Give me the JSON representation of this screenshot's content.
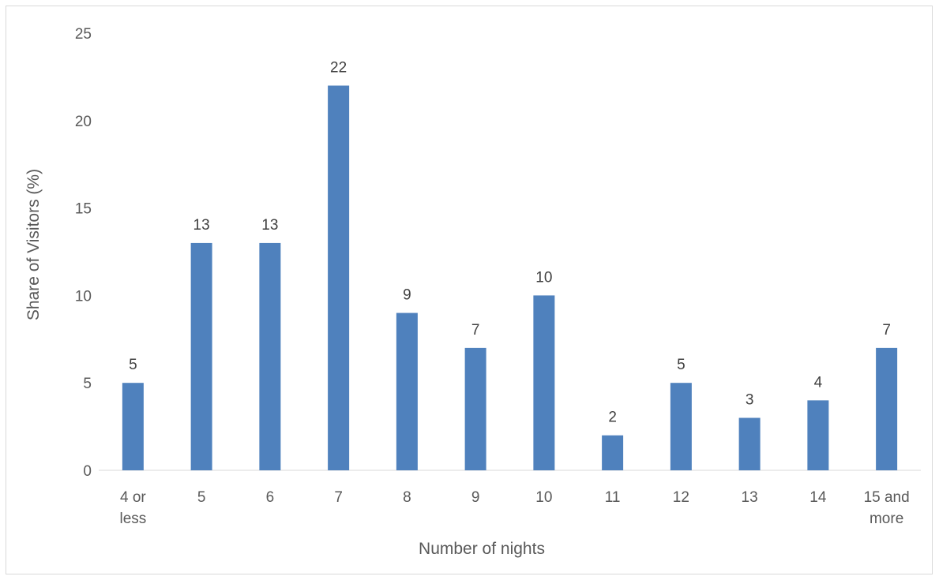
{
  "chart_data": {
    "type": "bar",
    "categories": [
      "4 or less",
      "5",
      "6",
      "7",
      "8",
      "9",
      "10",
      "11",
      "12",
      "13",
      "14",
      "15 and more"
    ],
    "series": [
      {
        "values": [
          5,
          13,
          13,
          22,
          9,
          7,
          10,
          2,
          5,
          3,
          4,
          7
        ]
      }
    ],
    "data_labels": [
      "5",
      "13",
      "13",
      "22",
      "9",
      "7",
      "10",
      "2",
      "5",
      "3",
      "4",
      "7"
    ],
    "title": "",
    "xlabel": "Number of nights",
    "ylabel": "Share of Visitors (%)",
    "ylim": [
      0,
      25
    ],
    "yticks": [
      "0",
      "5",
      "10",
      "15",
      "20",
      "25"
    ],
    "grid": false,
    "legend": "none",
    "colors": {
      "bar": "#4f81bd",
      "axis": "#d9d9d9"
    }
  }
}
